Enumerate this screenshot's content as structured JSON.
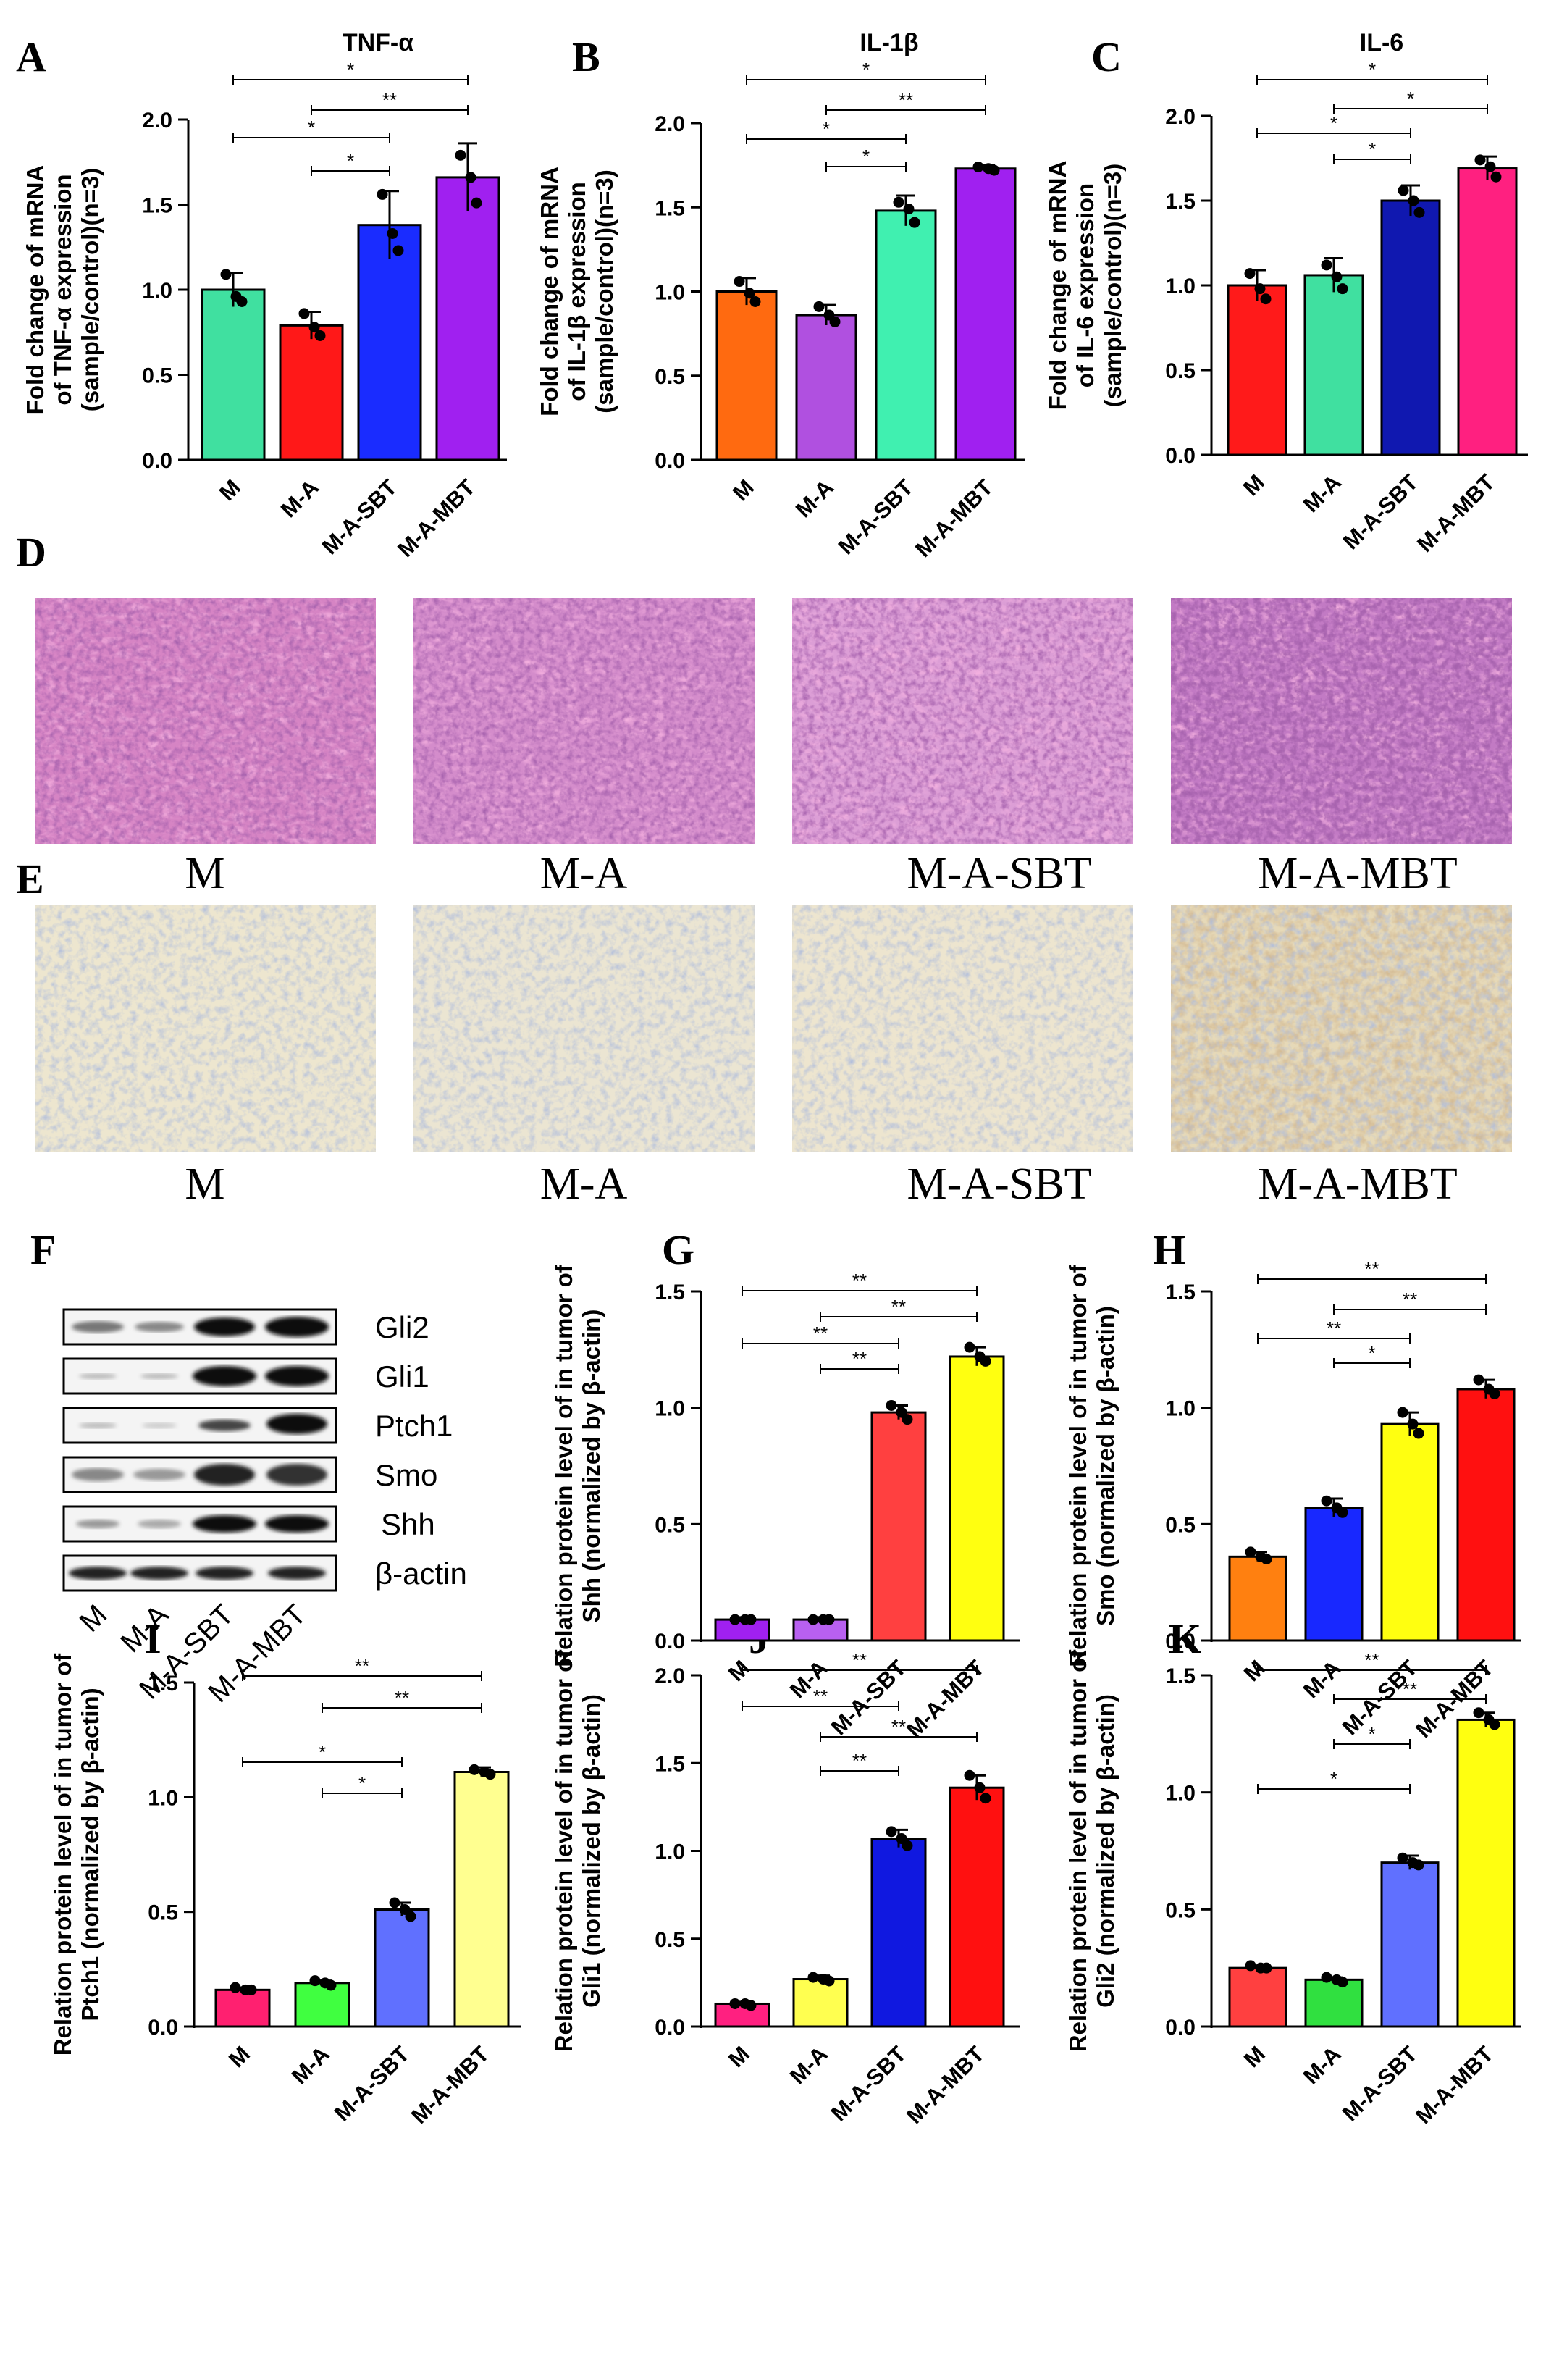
{
  "chart_data": [
    {
      "panel": "A",
      "type": "bar",
      "title": "TNF-α",
      "ylabel": [
        "Fold change of mRNA",
        "of TNF-α expression",
        "(sample/control)(n=3)"
      ],
      "categories": [
        "M",
        "M-A",
        "M-A-SBT",
        "M-A-MBT"
      ],
      "values": [
        1.0,
        0.79,
        1.38,
        1.66
      ],
      "errors": [
        0.1,
        0.08,
        0.2,
        0.2
      ],
      "points": [
        [
          1.09,
          0.96,
          0.93
        ],
        [
          0.86,
          0.78,
          0.73
        ],
        [
          1.56,
          1.33,
          1.23
        ],
        [
          1.79,
          1.66,
          1.51
        ]
      ],
      "colors": [
        "#40e0a0",
        "#ff1818",
        "#1a2cff",
        "#a020f0"
      ],
      "ylim": [
        0,
        2.0
      ],
      "yticks": [
        "0.0",
        "0.5",
        "1.0",
        "1.5",
        "2.0"
      ],
      "sig": [
        {
          "a": 0,
          "b": 3,
          "label": "*"
        },
        {
          "a": 1,
          "b": 3,
          "label": "**"
        },
        {
          "a": 0,
          "b": 2,
          "label": "*"
        },
        {
          "a": 1,
          "b": 2,
          "label": "*"
        }
      ]
    },
    {
      "panel": "B",
      "type": "bar",
      "title": "IL-1β",
      "ylabel": [
        "Fold change of mRNA",
        "of IL-1β expression",
        "(sample/control)(n=3)"
      ],
      "categories": [
        "M",
        "M-A",
        "M-A-SBT",
        "M-A-MBT"
      ],
      "values": [
        1.0,
        0.86,
        1.48,
        1.73
      ],
      "errors": [
        0.08,
        0.06,
        0.09,
        0.02
      ],
      "points": [
        [
          1.06,
          0.99,
          0.94
        ],
        [
          0.91,
          0.86,
          0.82
        ],
        [
          1.53,
          1.49,
          1.41
        ],
        [
          1.74,
          1.73,
          1.72
        ]
      ],
      "colors": [
        "#ff6a10",
        "#b050e0",
        "#40f0b0",
        "#a020f0"
      ],
      "ylim": [
        0,
        2.0
      ],
      "yticks": [
        "0.0",
        "0.5",
        "1.0",
        "1.5",
        "2.0"
      ],
      "sig": [
        {
          "a": 0,
          "b": 3,
          "label": "*"
        },
        {
          "a": 1,
          "b": 3,
          "label": "**"
        },
        {
          "a": 0,
          "b": 2,
          "label": "*"
        },
        {
          "a": 1,
          "b": 2,
          "label": "*"
        }
      ]
    },
    {
      "panel": "C",
      "type": "bar",
      "title": "IL-6",
      "ylabel": [
        "Fold change of mRNA",
        "of IL-6 expression",
        "(sample/control)(n=3)"
      ],
      "categories": [
        "M",
        "M-A",
        "M-A-SBT",
        "M-A-MBT"
      ],
      "values": [
        1.0,
        1.06,
        1.5,
        1.69
      ],
      "errors": [
        0.09,
        0.1,
        0.09,
        0.07
      ],
      "points": [
        [
          1.07,
          0.98,
          0.92
        ],
        [
          1.12,
          1.05,
          0.98
        ],
        [
          1.56,
          1.5,
          1.43
        ],
        [
          1.74,
          1.7,
          1.64
        ]
      ],
      "colors": [
        "#ff1a1a",
        "#40e0a0",
        "#1018b0",
        "#ff2080"
      ],
      "ylim": [
        0,
        2.0
      ],
      "yticks": [
        "0.0",
        "0.5",
        "1.0",
        "1.5",
        "2.0"
      ],
      "sig": [
        {
          "a": 0,
          "b": 3,
          "label": "*"
        },
        {
          "a": 1,
          "b": 3,
          "label": "*"
        },
        {
          "a": 0,
          "b": 2,
          "label": "*"
        },
        {
          "a": 1,
          "b": 2,
          "label": "*"
        }
      ]
    },
    {
      "panel": "G",
      "type": "bar",
      "title": "",
      "ylabel": [
        "Relation protein level of in tumor of",
        "Shh (normalized by β-actin)"
      ],
      "categories": [
        "M",
        "M-A",
        "M-A-SBT",
        "M-A-MBT"
      ],
      "values": [
        0.09,
        0.09,
        0.98,
        1.22
      ],
      "errors": [
        0.01,
        0.01,
        0.03,
        0.04
      ],
      "points": [
        [
          0.09,
          0.09,
          0.09
        ],
        [
          0.09,
          0.09,
          0.09
        ],
        [
          1.01,
          0.98,
          0.95
        ],
        [
          1.26,
          1.22,
          1.2
        ]
      ],
      "colors": [
        "#a020f0",
        "#b860f0",
        "#ff4040",
        "#ffff10"
      ],
      "ylim": [
        0,
        1.5
      ],
      "yticks": [
        "0.0",
        "0.5",
        "1.0",
        "1.5"
      ],
      "sig": [
        {
          "a": 0,
          "b": 3,
          "label": "**"
        },
        {
          "a": 1,
          "b": 3,
          "label": "**"
        },
        {
          "a": 0,
          "b": 2,
          "label": "**"
        },
        {
          "a": 1,
          "b": 2,
          "label": "**"
        }
      ]
    },
    {
      "panel": "H",
      "type": "bar",
      "title": "",
      "ylabel": [
        "Relation protein level of in tumor of",
        "Smo (normalized by β-actin)"
      ],
      "categories": [
        "M",
        "M-A",
        "M-A-SBT",
        "M-A-MBT"
      ],
      "values": [
        0.36,
        0.57,
        0.93,
        1.08
      ],
      "errors": [
        0.02,
        0.04,
        0.05,
        0.04
      ],
      "points": [
        [
          0.38,
          0.36,
          0.35
        ],
        [
          0.6,
          0.57,
          0.55
        ],
        [
          0.98,
          0.93,
          0.89
        ],
        [
          1.12,
          1.08,
          1.06
        ]
      ],
      "colors": [
        "#ff8010",
        "#1828ff",
        "#ffff10",
        "#ff1010"
      ],
      "ylim": [
        0,
        1.5
      ],
      "yticks": [
        "0.0",
        "0.5",
        "1.0",
        "1.5"
      ],
      "sig": [
        {
          "a": 0,
          "b": 3,
          "label": "**"
        },
        {
          "a": 1,
          "b": 3,
          "label": "**"
        },
        {
          "a": 0,
          "b": 2,
          "label": "**"
        },
        {
          "a": 1,
          "b": 2,
          "label": "*"
        }
      ]
    },
    {
      "panel": "I",
      "type": "bar",
      "title": "",
      "ylabel": [
        "Relation protein level of in tumor of",
        "Ptch1 (normalized by β-actin)"
      ],
      "categories": [
        "M",
        "M-A",
        "M-A-SBT",
        "M-A-MBT"
      ],
      "values": [
        0.16,
        0.19,
        0.51,
        1.11
      ],
      "errors": [
        0.01,
        0.01,
        0.03,
        0.02
      ],
      "points": [
        [
          0.17,
          0.16,
          0.16
        ],
        [
          0.2,
          0.19,
          0.18
        ],
        [
          0.54,
          0.51,
          0.48
        ],
        [
          1.12,
          1.11,
          1.1
        ]
      ],
      "colors": [
        "#ff2070",
        "#40ff40",
        "#6070ff",
        "#ffff90"
      ],
      "ylim": [
        0,
        1.5
      ],
      "yticks": [
        "0.0",
        "0.5",
        "1.0",
        "1.5"
      ],
      "sig": [
        {
          "a": 0,
          "b": 3,
          "label": "**"
        },
        {
          "a": 1,
          "b": 3,
          "label": "**"
        },
        {
          "a": 0,
          "b": 2,
          "label": "*"
        },
        {
          "a": 1,
          "b": 2,
          "label": "*"
        }
      ]
    },
    {
      "panel": "J",
      "type": "bar",
      "title": "",
      "ylabel": [
        "Relation protein level of in tumor of",
        "Gli1 (normalized by β-actin)"
      ],
      "categories": [
        "M",
        "M-A",
        "M-A-SBT",
        "M-A-MBT"
      ],
      "values": [
        0.13,
        0.27,
        1.07,
        1.36
      ],
      "errors": [
        0.01,
        0.02,
        0.05,
        0.07
      ],
      "points": [
        [
          0.13,
          0.13,
          0.12
        ],
        [
          0.28,
          0.27,
          0.26
        ],
        [
          1.11,
          1.07,
          1.03
        ],
        [
          1.43,
          1.36,
          1.3
        ]
      ],
      "colors": [
        "#ff2080",
        "#ffff50",
        "#1018e0",
        "#ff1010"
      ],
      "ylim": [
        0,
        2.0
      ],
      "yticks": [
        "0.0",
        "0.5",
        "1.0",
        "1.5",
        "2.0"
      ],
      "sig": [
        {
          "a": 0,
          "b": 3,
          "label": "**"
        },
        {
          "a": 0,
          "b": 2,
          "label": "**"
        },
        {
          "a": 1,
          "b": 3,
          "label": "**"
        },
        {
          "a": 1,
          "b": 2,
          "label": "**"
        }
      ]
    },
    {
      "panel": "K",
      "type": "bar",
      "title": "",
      "ylabel": [
        "Relation protein level of in tumor of",
        "Gli2 (normalized by β-actin)"
      ],
      "categories": [
        "M",
        "M-A",
        "M-A-SBT",
        "M-A-MBT"
      ],
      "values": [
        0.25,
        0.2,
        0.7,
        1.31
      ],
      "errors": [
        0.01,
        0.01,
        0.03,
        0.03
      ],
      "points": [
        [
          0.26,
          0.25,
          0.25
        ],
        [
          0.21,
          0.2,
          0.19
        ],
        [
          0.72,
          0.7,
          0.69
        ],
        [
          1.34,
          1.31,
          1.29
        ]
      ],
      "colors": [
        "#ff4040",
        "#30e040",
        "#6070ff",
        "#ffff10"
      ],
      "ylim": [
        0,
        1.5
      ],
      "yticks": [
        "0.0",
        "0.5",
        "1.0",
        "1.5"
      ],
      "sig": [
        {
          "a": 0,
          "b": 3,
          "label": "**"
        },
        {
          "a": 1,
          "b": 3,
          "label": "**"
        },
        {
          "a": 1,
          "b": 2,
          "label": "*"
        },
        {
          "a": 0,
          "b": 2,
          "label": "*"
        }
      ]
    }
  ],
  "histology": {
    "he_panel": "D",
    "ihc_panel": "E",
    "he_captions": [
      "M",
      "M-A",
      "M-A-SBT",
      "M-A-MBT"
    ],
    "ihc_captions": [
      "M",
      "M-A",
      "M-A-SBT",
      "M-A-MBT"
    ]
  },
  "western_blot": {
    "panel": "F",
    "proteins": [
      "Gli2",
      "Gli1",
      "Ptch1",
      "Smo",
      "Shh",
      "β-actin"
    ],
    "lanes": [
      "M",
      "M-A",
      "M-A-SBT",
      "M-A-MBT"
    ]
  }
}
